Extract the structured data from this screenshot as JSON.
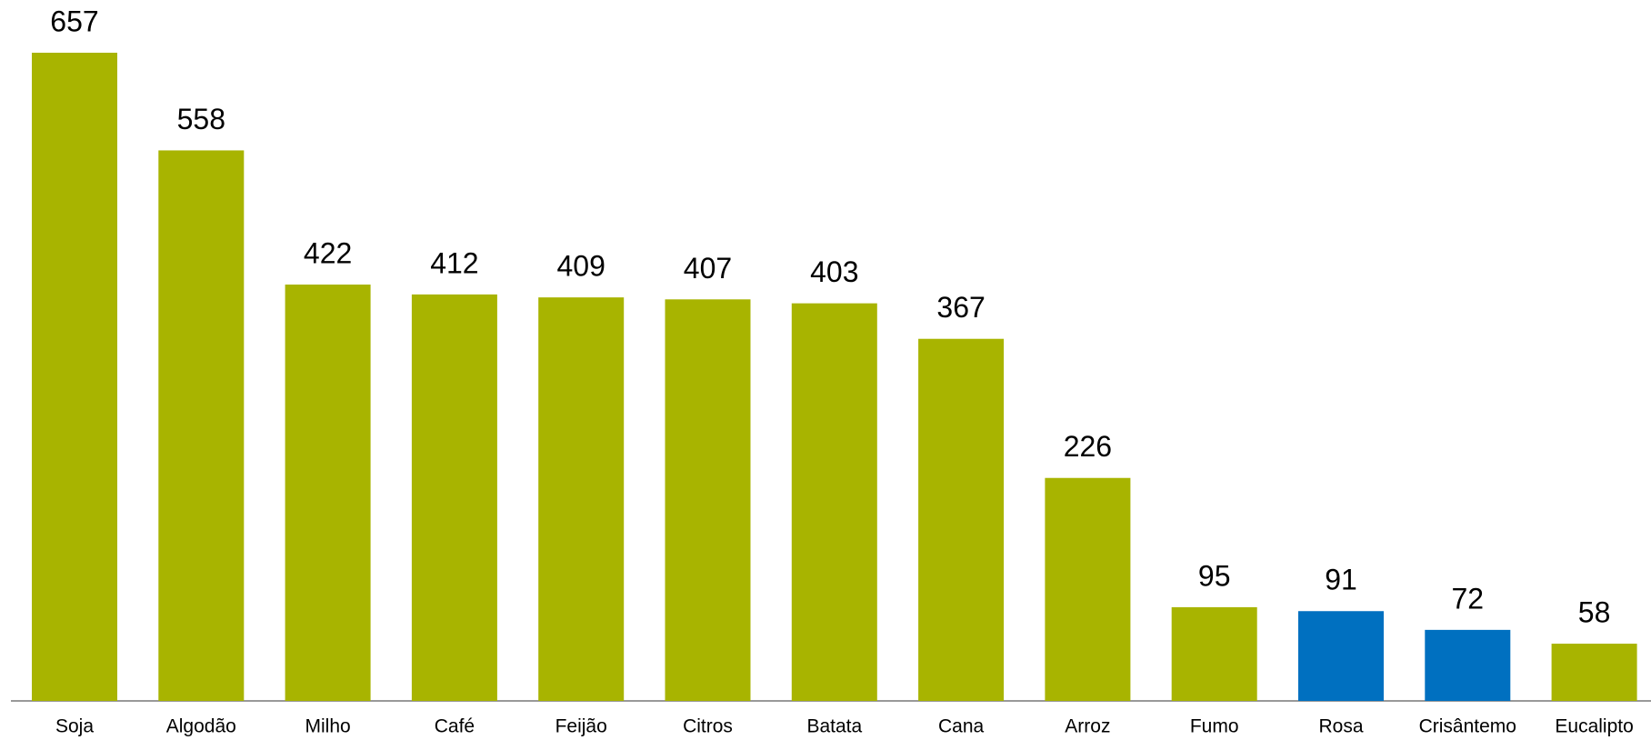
{
  "chart_data": {
    "type": "bar",
    "categories": [
      "Soja",
      "Algodão",
      "Milho",
      "Café",
      "Feijão",
      "Citros",
      "Batata",
      "Cana",
      "Arroz",
      "Fumo",
      "Rosa",
      "Crisântemo",
      "Eucalipto"
    ],
    "values": [
      657,
      558,
      422,
      412,
      409,
      407,
      403,
      367,
      226,
      95,
      91,
      72,
      58
    ],
    "colors": [
      "#a8b400",
      "#a8b400",
      "#a8b400",
      "#a8b400",
      "#a8b400",
      "#a8b400",
      "#a8b400",
      "#a8b400",
      "#a8b400",
      "#a8b400",
      "#0070c0",
      "#0070c0",
      "#a8b400"
    ]
  }
}
